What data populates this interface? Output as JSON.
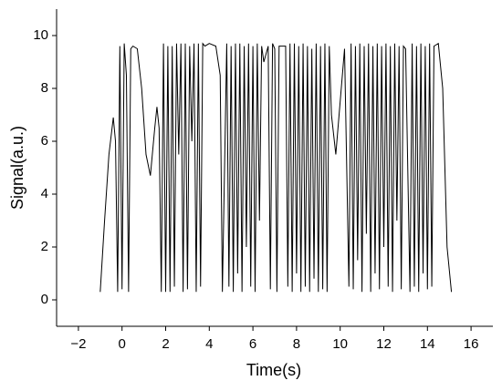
{
  "chart_data": {
    "type": "line",
    "x_label": "Time(s)",
    "y_label": "Signal(a.u.)",
    "x": [
      -1.0,
      -0.8,
      -0.6,
      -0.4,
      -0.3,
      -0.2,
      -0.1,
      0,
      0.1,
      0.2,
      0.3,
      0.4,
      0.5,
      0.7,
      0.9,
      1.1,
      1.3,
      1.5,
      1.6,
      1.7,
      1.8,
      1.9,
      2.0,
      2.1,
      2.2,
      2.3,
      2.4,
      2.5,
      2.6,
      2.7,
      2.8,
      2.9,
      3.0,
      3.1,
      3.2,
      3.3,
      3.4,
      3.5,
      3.6,
      3.7,
      3.8,
      4.0,
      4.3,
      4.5,
      4.6,
      4.8,
      4.9,
      5.0,
      5.1,
      5.2,
      5.3,
      5.4,
      5.5,
      5.6,
      5.7,
      5.8,
      5.9,
      6.0,
      6.1,
      6.2,
      6.3,
      6.4,
      6.5,
      6.7,
      6.8,
      6.9,
      7.0,
      7.1,
      7.2,
      7.5,
      7.6,
      7.7,
      7.8,
      7.9,
      8.0,
      8.1,
      8.2,
      8.3,
      8.4,
      8.5,
      8.6,
      8.7,
      8.8,
      8.9,
      9.0,
      9.1,
      9.2,
      9.3,
      9.4,
      9.5,
      9.6,
      9.8,
      10.0,
      10.2,
      10.4,
      10.5,
      10.6,
      10.7,
      10.8,
      10.9,
      11.0,
      11.1,
      11.2,
      11.3,
      11.4,
      11.5,
      11.6,
      11.7,
      11.8,
      11.9,
      12.0,
      12.1,
      12.2,
      12.3,
      12.4,
      12.5,
      12.6,
      12.7,
      12.8,
      12.9,
      13.0,
      13.2,
      13.3,
      13.4,
      13.5,
      13.6,
      13.7,
      13.8,
      13.9,
      14.0,
      14.1,
      14.2,
      14.3,
      14.5,
      14.7,
      14.9,
      15.1
    ],
    "series": [
      {
        "color": "#000000",
        "values": [
          0.3,
          3,
          5.5,
          6.9,
          6,
          0.3,
          9.6,
          0.4,
          9.7,
          8.5,
          0.3,
          9.5,
          9.6,
          9.5,
          8,
          5.5,
          4.7,
          6.5,
          7.3,
          6.5,
          0.3,
          9.7,
          0.3,
          9.6,
          0.3,
          9.6,
          0.5,
          9.7,
          5.5,
          9.7,
          0.3,
          9.7,
          0.4,
          9.6,
          6,
          9.7,
          0.3,
          9.7,
          0.5,
          9.7,
          9.6,
          9.7,
          9.6,
          8.5,
          0.3,
          9.7,
          0.5,
          9.6,
          0.3,
          9.7,
          1,
          9.7,
          0.3,
          9.6,
          2,
          9.7,
          0.5,
          9.6,
          0.3,
          9.7,
          3,
          9.6,
          9,
          9.6,
          0.4,
          9.7,
          9.5,
          0.3,
          9.6,
          9.6,
          0.5,
          9.7,
          0.3,
          9.7,
          1,
          9.6,
          0.3,
          9.7,
          0.5,
          9.6,
          0.3,
          9.5,
          0.8,
          9.7,
          0.3,
          9.6,
          0.4,
          9.7,
          0.3,
          9.6,
          7,
          5.5,
          7.5,
          9.5,
          0.5,
          9.7,
          0.4,
          9.6,
          1.5,
          9.7,
          0.3,
          9.6,
          2.5,
          9.7,
          0.3,
          9.6,
          1,
          9.7,
          0.4,
          9.6,
          2,
          9.7,
          0.5,
          9.6,
          0.3,
          9.7,
          3,
          9.6,
          0.4,
          9.6,
          9.5,
          0.3,
          9.7,
          0.5,
          9.6,
          0.3,
          9.7,
          1,
          9.6,
          0.4,
          9.7,
          0.5,
          9.6,
          9.7,
          8,
          2,
          0.3
        ]
      }
    ],
    "xlim": [
      -3,
      17
    ],
    "ylim": [
      -1,
      11
    ],
    "xticks": [
      {
        "value": -2,
        "label": "−2"
      },
      0,
      2,
      4,
      6,
      8,
      10,
      12,
      14,
      16
    ],
    "yticks": [
      0,
      2,
      4,
      6,
      8,
      10
    ]
  }
}
